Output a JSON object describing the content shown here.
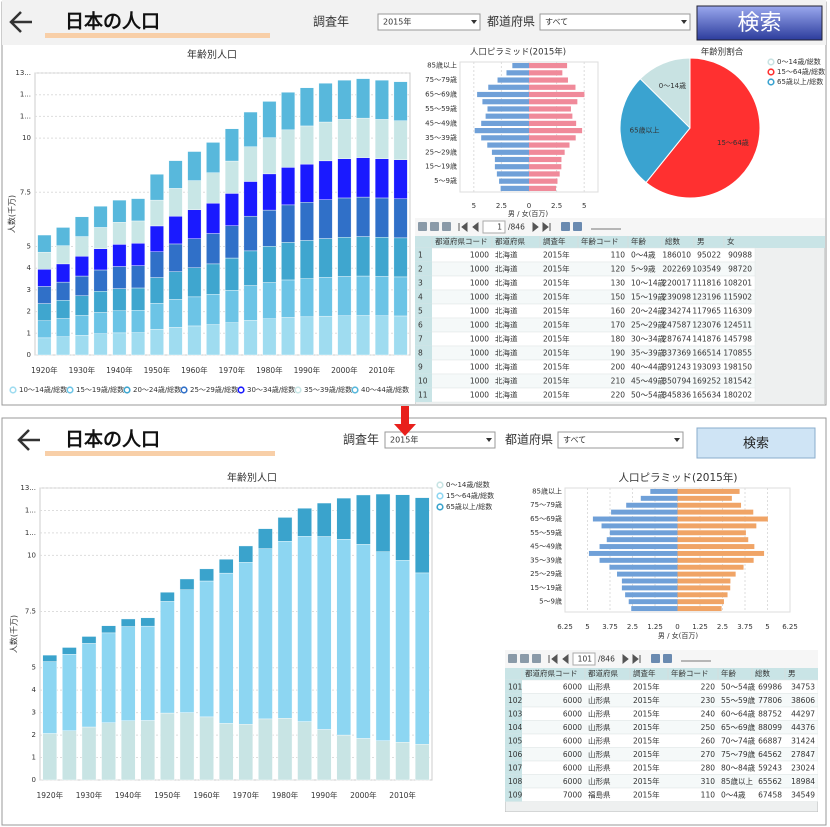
{
  "top": {
    "header": {
      "title": "日本の人口",
      "year_label": "調査年",
      "year_value": "2015年",
      "pref_label": "都道府県",
      "pref_value": "すべて",
      "search": "検索"
    },
    "stack_chart": {
      "type": "bar",
      "stacked": true,
      "title": "年齢別人口",
      "y_label": "人数(千万)",
      "categories": [
        "1920年",
        null,
        "1930年",
        null,
        "1940年",
        null,
        "1950年",
        null,
        "1960年",
        null,
        "1970年",
        null,
        "1980年",
        null,
        "1990年",
        null,
        "2000年",
        null,
        "2010年",
        null
      ],
      "series": [
        {
          "name": "10～14歳/総数",
          "color": "#9fdcf0",
          "values": [
            0.79,
            0.84,
            0.91,
            0.98,
            1.02,
            1.03,
            1.19,
            1.28,
            1.34,
            1.4,
            1.49,
            1.6,
            1.67,
            1.73,
            1.76,
            1.79,
            1.81,
            1.82,
            1.81,
            1.8
          ]
        },
        {
          "name": "15～19歳/総数",
          "color": "#6cc4e6",
          "values": [
            0.79,
            0.84,
            0.91,
            0.98,
            1.02,
            1.03,
            1.19,
            1.28,
            1.34,
            1.4,
            1.49,
            1.6,
            1.67,
            1.73,
            1.76,
            1.79,
            1.81,
            1.82,
            1.81,
            1.8
          ]
        },
        {
          "name": "20～24歳/総数",
          "color": "#3fa6cf",
          "values": [
            0.79,
            0.84,
            0.91,
            0.98,
            1.02,
            1.03,
            1.19,
            1.28,
            1.34,
            1.4,
            1.49,
            1.6,
            1.67,
            1.73,
            1.76,
            1.79,
            1.81,
            1.82,
            1.81,
            1.8
          ]
        },
        {
          "name": "25～29歳/総数",
          "color": "#3070c8",
          "values": [
            0.79,
            0.84,
            0.91,
            0.98,
            1.02,
            1.03,
            1.19,
            1.28,
            1.34,
            1.4,
            1.49,
            1.6,
            1.67,
            1.73,
            1.76,
            1.79,
            1.81,
            1.82,
            1.81,
            1.8
          ]
        },
        {
          "name": "30～34歳/総数",
          "color": "#1a1aff",
          "values": [
            0.79,
            0.84,
            0.91,
            0.98,
            1.02,
            1.03,
            1.19,
            1.28,
            1.34,
            1.4,
            1.49,
            1.6,
            1.67,
            1.73,
            1.76,
            1.79,
            1.81,
            1.82,
            1.81,
            1.8
          ]
        },
        {
          "name": "35～39歳/総数",
          "color": "#c8e6e6",
          "values": [
            0.79,
            0.84,
            0.91,
            0.98,
            1.02,
            1.03,
            1.19,
            1.28,
            1.34,
            1.4,
            1.49,
            1.6,
            1.67,
            1.73,
            1.76,
            1.79,
            1.81,
            1.82,
            1.81,
            1.8
          ]
        },
        {
          "name": "40～44歳/総数",
          "color": "#58b8dc",
          "values": [
            0.79,
            0.84,
            0.91,
            0.98,
            1.02,
            1.03,
            1.19,
            1.28,
            1.34,
            1.4,
            1.49,
            1.6,
            1.67,
            1.73,
            1.76,
            1.79,
            1.81,
            1.82,
            1.81,
            1.8
          ]
        }
      ],
      "ylim": [
        0,
        13
      ],
      "yticks": [
        0,
        1,
        2,
        3,
        4,
        5,
        7.5,
        10,
        {
          "value": 11,
          "label": "1..."
        },
        {
          "value": 12,
          "label": "1..."
        },
        {
          "value": 13,
          "label": "13..."
        }
      ],
      "grid": true,
      "legend": "bottom"
    },
    "pyramid": {
      "type": "pyramid",
      "title": "人口ピラミッド(2015年)",
      "x_label": "男 / 女(百万)",
      "categories": [
        null,
        "5～9歳",
        null,
        "15～19歳",
        null,
        "25～29歳",
        null,
        "35～39歳",
        null,
        "45～49歳",
        null,
        "55～59歳",
        null,
        "65～69歳",
        null,
        "75～79歳",
        null,
        "85歳以上"
      ],
      "series": [
        {
          "color": "#6fa0d8",
          "values": [
            2.57,
            2.71,
            2.91,
            3.09,
            3.09,
            3.36,
            3.78,
            4.33,
            4.92,
            4.33,
            3.93,
            3.76,
            4.22,
            4.7,
            3.69,
            2.85,
            2.04,
            1.51
          ]
        },
        {
          "color": "#f08a9a",
          "values": [
            2.45,
            2.58,
            2.78,
            2.93,
            2.94,
            3.23,
            3.67,
            4.23,
            4.81,
            4.27,
            3.93,
            3.8,
            4.38,
            5.02,
            4.21,
            3.53,
            3.02,
            3.45
          ]
        }
      ],
      "xlim": [
        -6.25,
        6.25
      ],
      "xticks": [
        {
          "value": -5,
          "label": "5"
        },
        {
          "value": -2.5,
          "label": "2.5"
        },
        0,
        2.5,
        5
      ]
    },
    "pie": {
      "type": "pie",
      "title": "年齢別割合",
      "categories": [
        "0～14歳/総数",
        "15～64歳/総数",
        "65歳以上/総数"
      ],
      "labels": [
        "0～14歳",
        "15～64歳",
        "65歳以上"
      ],
      "values": [
        12.6,
        60.8,
        26.6
      ],
      "colors": [
        "#c8e2e2",
        "#ff3030",
        "#3aa3d0"
      ]
    },
    "table": {
      "pager": {
        "page": "1",
        "total": "/846"
      },
      "columns": [
        "都道府県コード",
        "都道府県",
        "調査年",
        "年齢コード",
        "年齢",
        "総数",
        "男",
        "女"
      ],
      "rows": [
        [
          1,
          1000,
          "北海道",
          "2015年",
          110,
          "0～4歳",
          186010,
          95022,
          90988
        ],
        [
          2,
          1000,
          "北海道",
          "2015年",
          120,
          "5～9歳",
          202269,
          103549,
          98720
        ],
        [
          3,
          1000,
          "北海道",
          "2015年",
          130,
          "10～14歳",
          220017,
          111816,
          108201
        ],
        [
          4,
          1000,
          "北海道",
          "2015年",
          150,
          "15～19歳",
          239098,
          123196,
          115902
        ],
        [
          5,
          1000,
          "北海道",
          "2015年",
          160,
          "20～24歳",
          234274,
          117965,
          116309
        ],
        [
          6,
          1000,
          "北海道",
          "2015年",
          170,
          "25～29歳",
          247587,
          123076,
          124511
        ],
        [
          7,
          1000,
          "北海道",
          "2015年",
          180,
          "30～34歳",
          287674,
          141876,
          145798
        ],
        [
          8,
          1000,
          "北海道",
          "2015年",
          190,
          "35～39歳",
          337369,
          166514,
          170855
        ],
        [
          9,
          1000,
          "北海道",
          "2015年",
          200,
          "40～44歳",
          391243,
          193093,
          198150
        ],
        [
          10,
          1000,
          "北海道",
          "2015年",
          210,
          "45～49歳",
          350794,
          169252,
          181542
        ],
        [
          11,
          1000,
          "北海道",
          "2015年",
          220,
          "50～54歳",
          345836,
          165634,
          180202
        ]
      ]
    }
  },
  "bottom": {
    "header": {
      "title": "日本の人口",
      "year_label": "調査年",
      "year_value": "2015年",
      "pref_label": "都道府県",
      "pref_value": "すべて",
      "search": "検索"
    },
    "stack_chart": {
      "type": "bar",
      "stacked": true,
      "title": "年齢別人口",
      "y_label": "人数(千万)",
      "categories": [
        "1920年",
        null,
        "1930年",
        null,
        "1940年",
        null,
        "1950年",
        null,
        "1960年",
        null,
        "1970年",
        null,
        "1980年",
        null,
        "1990年",
        null,
        "2000年",
        null,
        "2010年",
        null
      ],
      "series": [
        {
          "name": "0～14歳/総数",
          "color": "#c8e4e4",
          "values": [
            2.07,
            2.19,
            2.36,
            2.55,
            2.64,
            2.65,
            2.98,
            3.0,
            2.81,
            2.52,
            2.48,
            2.72,
            2.75,
            2.6,
            2.25,
            2.0,
            1.85,
            1.75,
            1.68,
            1.59
          ]
        },
        {
          "name": "15～64歳/総数",
          "color": "#8dd6f2",
          "values": [
            3.2,
            3.41,
            3.72,
            4.0,
            4.19,
            4.2,
            4.97,
            5.47,
            6.05,
            6.69,
            7.21,
            7.58,
            7.88,
            8.25,
            8.59,
            8.72,
            8.64,
            8.41,
            8.1,
            7.63
          ]
        },
        {
          "name": "65歳以上/総数",
          "color": "#3aa3cc",
          "values": [
            0.29,
            0.3,
            0.31,
            0.32,
            0.34,
            0.37,
            0.41,
            0.48,
            0.54,
            0.62,
            0.73,
            0.89,
            1.06,
            1.25,
            1.49,
            1.83,
            2.2,
            2.57,
            2.92,
            3.35
          ]
        }
      ],
      "ylim": [
        0,
        13
      ],
      "yticks": [
        0,
        1,
        2,
        3,
        4,
        5,
        7.5,
        10,
        {
          "value": 11,
          "label": "1..."
        },
        {
          "value": 12,
          "label": "1..."
        },
        {
          "value": 13,
          "label": "13..."
        }
      ],
      "grid": true,
      "legend": "right"
    },
    "pyramid": {
      "type": "pyramid",
      "title": "人口ピラミッド(2015年)",
      "x_label": "男 / 女(百万)",
      "categories": [
        null,
        "5～9歳",
        null,
        "15～19歳",
        null,
        "25～29歳",
        null,
        "35～39歳",
        null,
        "45～49歳",
        null,
        "55～59歳",
        null,
        "65～69歳",
        null,
        "75～79歳",
        null,
        "85歳以上"
      ],
      "series": [
        {
          "color": "#6fa0d8",
          "values": [
            2.57,
            2.71,
            2.91,
            3.09,
            3.09,
            3.36,
            3.78,
            4.33,
            4.92,
            4.33,
            3.93,
            3.76,
            4.22,
            4.7,
            3.69,
            2.85,
            2.04,
            1.51
          ]
        },
        {
          "color": "#f0a466",
          "values": [
            2.45,
            2.58,
            2.78,
            2.93,
            2.94,
            3.23,
            3.67,
            4.23,
            4.81,
            4.27,
            3.93,
            3.8,
            4.38,
            5.02,
            4.21,
            3.53,
            3.02,
            3.45
          ]
        }
      ],
      "xlim": [
        -6.25,
        6.25
      ],
      "xticks": [
        {
          "value": -6.25,
          "label": "6.25"
        },
        {
          "value": -5,
          "label": "5"
        },
        {
          "value": -3.75,
          "label": "3.75"
        },
        {
          "value": -2.5,
          "label": "2.5"
        },
        {
          "value": -1.25,
          "label": "1.25"
        },
        0,
        1.25,
        2.5,
        3.75,
        5,
        6.25
      ]
    },
    "table": {
      "pager": {
        "page": "101",
        "total": "/846"
      },
      "columns": [
        "都道府県コード",
        "都道府県",
        "調査年",
        "年齢コード",
        "年齢",
        "総数",
        "男"
      ],
      "rows": [
        [
          101,
          6000,
          "山形県",
          "2015年",
          220,
          "50～54歳",
          69986,
          34753
        ],
        [
          102,
          6000,
          "山形県",
          "2015年",
          230,
          "55～59歳",
          77806,
          38606
        ],
        [
          103,
          6000,
          "山形県",
          "2015年",
          240,
          "60～64歳",
          88752,
          44297
        ],
        [
          104,
          6000,
          "山形県",
          "2015年",
          250,
          "65～69歳",
          88099,
          44376
        ],
        [
          105,
          6000,
          "山形県",
          "2015年",
          260,
          "70～74歳",
          66887,
          31424
        ],
        [
          106,
          6000,
          "山形県",
          "2015年",
          270,
          "75～79歳",
          64562,
          27847
        ],
        [
          107,
          6000,
          "山形県",
          "2015年",
          280,
          "80～84歳",
          59243,
          23024
        ],
        [
          108,
          6000,
          "山形県",
          "2015年",
          310,
          "85歳以上",
          65562,
          18984
        ],
        [
          109,
          7000,
          "福島県",
          "2015年",
          110,
          "0～4歳",
          67458,
          34549
        ]
      ]
    }
  }
}
